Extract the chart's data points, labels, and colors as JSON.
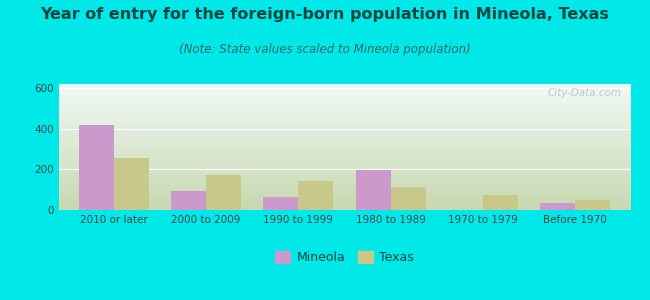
{
  "title": "Year of entry for the foreign-born population in Mineola, Texas",
  "subtitle": "(Note: State values scaled to Mineola population)",
  "categories": [
    "2010 or later",
    "2000 to 2009",
    "1990 to 1999",
    "1980 to 1989",
    "1970 to 1979",
    "Before 1970"
  ],
  "mineola_values": [
    420,
    95,
    65,
    195,
    0,
    35
  ],
  "texas_values": [
    255,
    170,
    145,
    115,
    72,
    50
  ],
  "mineola_color": "#cc99cc",
  "texas_color": "#c8c88a",
  "background_outer": "#00e8e8",
  "background_plot_top_left": "#e8f8f0",
  "background_plot_top_right": "#ffffff",
  "background_plot_bottom": "#c8d8b0",
  "ylim": [
    0,
    620
  ],
  "yticks": [
    0,
    200,
    400,
    600
  ],
  "bar_width": 0.38,
  "title_fontsize": 11.5,
  "subtitle_fontsize": 8.5,
  "tick_fontsize": 7.5,
  "legend_fontsize": 9,
  "watermark_text": "City-Data.com"
}
